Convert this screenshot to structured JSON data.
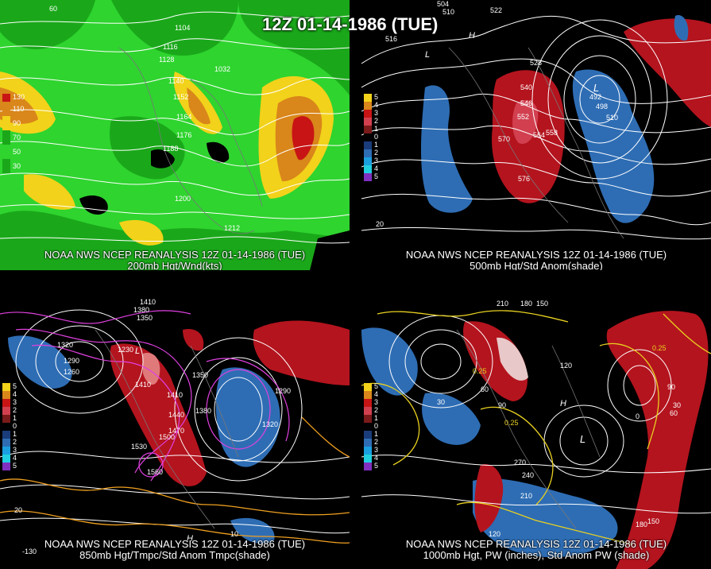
{
  "main_title": "12Z 01-14-1986 (TUE)",
  "colors": {
    "jet_light_green": "#2fd42f",
    "jet_mid_green": "#1aa81a",
    "jet_yellow": "#f2d21a",
    "jet_orange": "#d9861a",
    "jet_red": "#c81414",
    "anom_red": "#b4141e",
    "anom_blue": "#2e6db4",
    "contour_white": "#ffffff",
    "contour_magenta": "#e040e0",
    "contour_yellow": "#e8d020"
  },
  "panels": {
    "p200": {
      "caption_line1": "NOAA NWS NCEP REANALYSIS 12Z 01-14-1986 (TUE)",
      "caption_line2": "200mb Hgt/Wnd(kts)",
      "legend": [
        "130",
        "110",
        "90",
        "70",
        "50",
        "30"
      ],
      "labels": [
        "1104",
        "1116",
        "1128",
        "1140",
        "1152",
        "1164",
        "1176",
        "1188",
        "1200",
        "1212",
        "1032",
        "60"
      ]
    },
    "p500": {
      "caption_line1": "NOAA NWS NCEP REANALYSIS 12Z 01-14-1986 (TUE)",
      "caption_line2": "500mb Hgt/Std Anom(shade)",
      "legend": [
        "5",
        "4",
        "3",
        "2",
        "1",
        "0",
        "1",
        "2",
        "3",
        "4",
        "5"
      ],
      "labels": [
        "504",
        "510",
        "516",
        "522",
        "528",
        "540",
        "546",
        "552",
        "558",
        "564",
        "570",
        "576",
        "492",
        "498",
        "510",
        "20",
        "H",
        "L"
      ]
    },
    "p850": {
      "caption_line1": "NOAA NWS NCEP REANALYSIS 12Z 01-14-1986 (TUE)",
      "caption_line2": "850mb Hgt/Tmpc/Std Anom Tmpc(shade)",
      "legend": [
        "5",
        "4",
        "3",
        "2",
        "1",
        "0",
        "1",
        "2",
        "3",
        "4",
        "5"
      ],
      "labels": [
        "1410",
        "1380",
        "1350",
        "1320",
        "1290",
        "1260",
        "1230",
        "1350",
        "1380",
        "1410",
        "1440",
        "1470",
        "1500",
        "1530",
        "1560",
        "1320",
        "1290",
        "1410",
        "10",
        "20",
        "-130",
        "H",
        "L"
      ]
    },
    "p1000": {
      "caption_line1": "NOAA NWS NCEP REANALYSIS 12Z 01-14-1986 (TUE)",
      "caption_line2": "1000mb Hgt, PW (inches), Std Anom PW (shade)",
      "legend": [
        "5",
        "4",
        "3",
        "2",
        "1",
        "0",
        "1",
        "2",
        "3",
        "4",
        "5"
      ],
      "labels": [
        "210",
        "180",
        "150",
        "120",
        "90",
        "60",
        "30",
        "0",
        "270",
        "240",
        "210",
        "180",
        "150",
        "120",
        "0.25",
        "0.25",
        "0.25",
        "90",
        "60",
        "30",
        "H",
        "L"
      ]
    }
  }
}
